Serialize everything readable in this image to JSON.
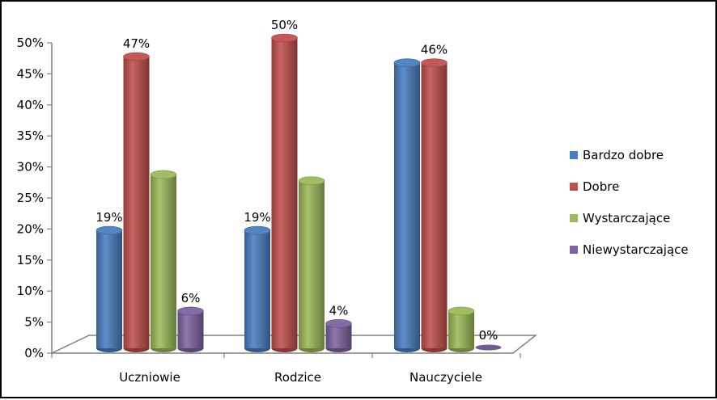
{
  "chart_data": {
    "type": "bar",
    "categories": [
      "Uczniowie",
      "Rodzice",
      "Nauczyciele"
    ],
    "series": [
      {
        "name": "Bardzo dobre",
        "values": [
          19,
          19,
          46
        ],
        "color": "#4a7fc1"
      },
      {
        "name": "Dobre",
        "values": [
          47,
          50,
          46
        ],
        "color": "#c0504d"
      },
      {
        "name": "Wystarczające",
        "values": [
          28,
          27,
          6
        ],
        "color": "#9bbb59"
      },
      {
        "name": "Niewystarczające",
        "values": [
          6,
          4,
          0
        ],
        "color": "#8064a2"
      }
    ],
    "data_labels": [
      {
        "category": 0,
        "series": 0,
        "text": "19%"
      },
      {
        "category": 0,
        "series": 1,
        "text": "47%"
      },
      {
        "category": 0,
        "series": 3,
        "text": "6%"
      },
      {
        "category": 1,
        "series": 0,
        "text": "19%"
      },
      {
        "category": 1,
        "series": 1,
        "text": "50%"
      },
      {
        "category": 1,
        "series": 3,
        "text": "4%"
      },
      {
        "category": 2,
        "series": 1,
        "text": "46%"
      },
      {
        "category": 2,
        "series": 3,
        "text": "0%"
      }
    ],
    "y_ticks": [
      "0%",
      "5%",
      "10%",
      "15%",
      "20%",
      "25%",
      "30%",
      "35%",
      "40%",
      "45%",
      "50%"
    ],
    "ylim": [
      0,
      50
    ],
    "y_unit": "%",
    "grid": false,
    "style": "3d-cylinder",
    "legend_position": "right"
  }
}
